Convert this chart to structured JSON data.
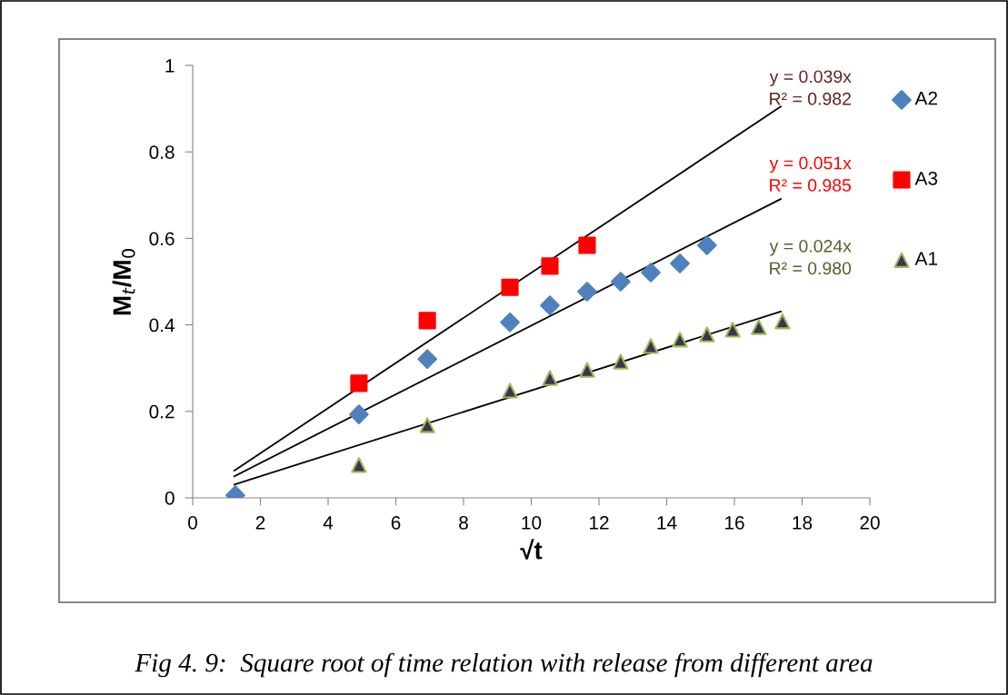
{
  "chart_data": {
    "type": "scatter",
    "xlabel": "√t",
    "ylabel": "M$_{t}$/M$_{0}$",
    "series": [
      {
        "name": "A2",
        "color": "#4f81bd",
        "marker": "diamond",
        "x": [
          1.26,
          4.91,
          6.93,
          9.37,
          10.55,
          11.65,
          12.64,
          13.53,
          14.39,
          15.19
        ],
        "values": [
          0.006,
          0.193,
          0.321,
          0.406,
          0.445,
          0.477,
          0.5,
          0.521,
          0.542,
          0.584
        ]
      },
      {
        "name": "A3",
        "color": "#ff0000",
        "marker": "square",
        "x": [
          4.91,
          6.93,
          9.37,
          10.55,
          11.65
        ],
        "values": [
          0.265,
          0.41,
          0.487,
          0.536,
          0.584
        ]
      },
      {
        "name": "A1",
        "color": "#3f3151",
        "marker": "triangle",
        "x": [
          4.91,
          6.93,
          9.37,
          10.55,
          11.65,
          12.64,
          13.53,
          14.39,
          15.19,
          15.95,
          16.72,
          17.42
        ],
        "values": [
          0.076,
          0.168,
          0.248,
          0.277,
          0.296,
          0.315,
          0.351,
          0.366,
          0.378,
          0.389,
          0.395,
          0.408
        ]
      },
      {
        "type": "line",
        "color": "#000000",
        "marker": "none",
        "x": [
          1.23,
          17.37
        ],
        "values": [
          0.063,
          0.905
        ]
      },
      {
        "type": "line",
        "color": "#000000",
        "marker": "none",
        "x": [
          1.23,
          17.37
        ],
        "values": [
          0.05,
          0.691
        ]
      },
      {
        "type": "line",
        "color": "#000000",
        "marker": "none",
        "x": [
          1.23,
          17.37
        ],
        "values": [
          0.031,
          0.431
        ]
      }
    ],
    "xlim": [
      0,
      20
    ],
    "xticks": [
      0,
      2,
      4,
      6,
      8,
      10,
      12,
      14,
      16,
      18,
      20
    ],
    "ylim": [
      0,
      1
    ],
    "yticks": [
      0,
      0.2,
      0.4,
      0.6,
      0.8,
      1
    ],
    "grid": false,
    "legend": "right",
    "annotations": [
      "y = 0.039x\nR² = 0.982",
      "y = 0.051x\nR² = 0.985",
      "y = 0.024x\nR² = 0.980",
      "Fig 4. 9:  Square root of time relation with release from different area"
    ]
  }
}
